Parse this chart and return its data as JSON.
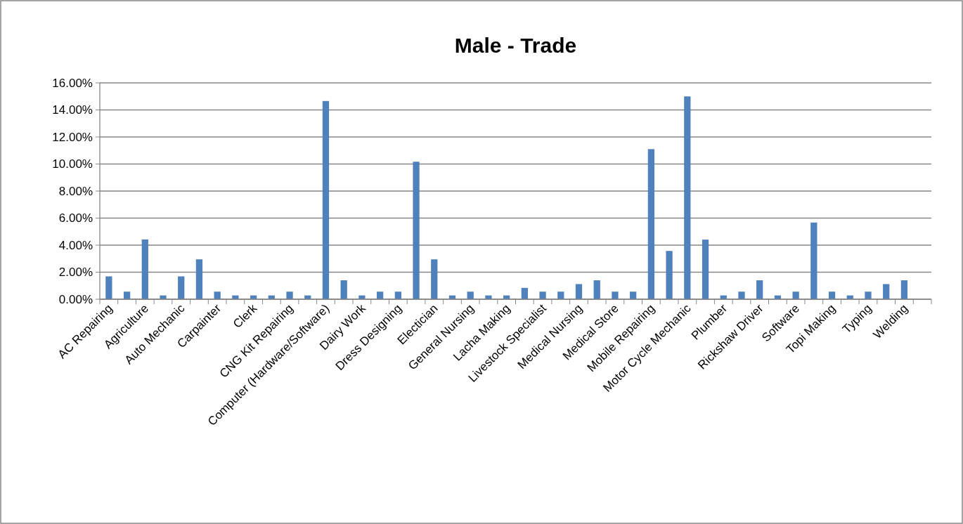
{
  "chart_data": {
    "type": "bar",
    "title": "Male - Trade",
    "categories": [
      "AC Repairing",
      null,
      "Agriculture",
      null,
      "Auto Mechanic",
      null,
      "Carpainter",
      null,
      "Clerk",
      null,
      "CNG Kit Repairing",
      null,
      "Computer (Hardware/Software)",
      null,
      "Dairy Work",
      null,
      "Dress Designing",
      null,
      "Electician",
      null,
      "General Nursing",
      null,
      "Lacha Making",
      null,
      "Livestock Specialist",
      null,
      "Medical Nursing",
      null,
      "Medical Store",
      null,
      "Mobile Repairing",
      null,
      "Motor Cycle Mechanic",
      null,
      "Plumber",
      null,
      "Rickshaw Driver",
      null,
      "Software",
      null,
      "Topi Making",
      null,
      "Typing",
      null,
      "Welding",
      null
    ],
    "values": [
      1.69,
      0.56,
      4.42,
      0.28,
      1.69,
      2.95,
      0.56,
      0.28,
      0.28,
      0.28,
      0.56,
      0.28,
      14.66,
      1.4,
      0.28,
      0.56,
      0.56,
      10.17,
      2.95,
      0.28,
      0.56,
      0.28,
      0.28,
      0.84,
      0.56,
      0.56,
      1.12,
      1.4,
      0.56,
      0.56,
      11.1,
      3.57,
      15.0,
      4.41,
      0.28,
      0.56,
      1.4,
      0.28,
      0.56,
      5.67,
      0.56,
      0.28,
      0.56,
      1.12,
      1.4,
      0
    ],
    "color": "#4f81bd",
    "ylim": [
      0,
      16
    ],
    "yticks": [
      {
        "value": 0,
        "label": "0.00%"
      },
      {
        "value": 2,
        "label": "2.00%"
      },
      {
        "value": 4,
        "label": "4.00%"
      },
      {
        "value": 6,
        "label": "6.00%"
      },
      {
        "value": 8,
        "label": "8.00%"
      },
      {
        "value": 10,
        "label": "10.00%"
      },
      {
        "value": 12,
        "label": "12.00%"
      },
      {
        "value": 14,
        "label": "14.00%"
      },
      {
        "value": 16,
        "label": "16.00%"
      }
    ],
    "grid": "y"
  }
}
